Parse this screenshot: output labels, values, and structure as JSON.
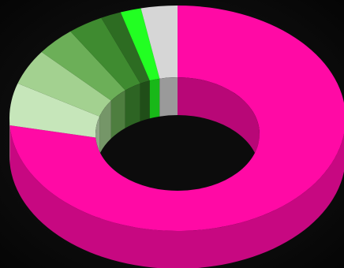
{
  "chart_data": {
    "type": "donut",
    "values": [
      74,
      6,
      5,
      4,
      3.5,
      2,
      2,
      3.5
    ],
    "colors": [
      "#ff0aa5",
      "#c6e6ba",
      "#a3d190",
      "#6caf58",
      "#3f8b30",
      "#2d6c22",
      "#22ff22",
      "#d6d6d6"
    ]
  }
}
